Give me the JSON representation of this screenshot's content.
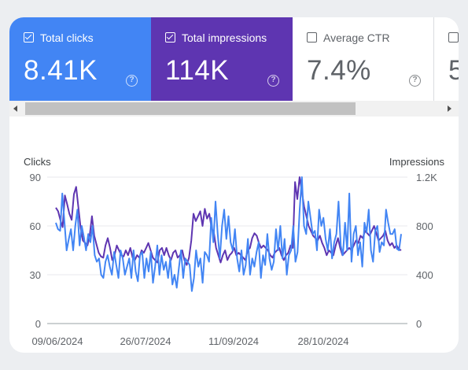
{
  "metrics": [
    {
      "label": "Total clicks",
      "value": "8.41K",
      "checked": true,
      "help": "?"
    },
    {
      "label": "Total impressions",
      "value": "114K",
      "checked": true,
      "help": "?"
    },
    {
      "label": "Average CTR",
      "value": "7.4%",
      "checked": false,
      "help": "?"
    },
    {
      "label": "",
      "value": "5",
      "checked": false
    }
  ],
  "colors": {
    "clicks": "#4285f4",
    "impressions": "#5e35b1"
  },
  "chart_data": {
    "type": "line",
    "left_axis_title": "Clicks",
    "right_axis_title": "Impressions",
    "left_ticks": [
      "0",
      "30",
      "60",
      "90"
    ],
    "right_ticks": [
      "0",
      "400",
      "800",
      "1.2K"
    ],
    "left_ylim": [
      0,
      90
    ],
    "right_ylim": [
      0,
      1200
    ],
    "x_ticks": [
      "09/06/2024",
      "26/07/2024",
      "11/09/2024",
      "28/10/2024"
    ],
    "grid": true,
    "series": [
      {
        "name": "Clicks",
        "axis": "left",
        "values": [
          62,
          58,
          57,
          80,
          62,
          45,
          52,
          58,
          45,
          60,
          70,
          48,
          60,
          53,
          45,
          55,
          50,
          60,
          42,
          38,
          40,
          30,
          28,
          38,
          42,
          35,
          30,
          44,
          36,
          28,
          45,
          40,
          30,
          35,
          40,
          28,
          45,
          32,
          26,
          42,
          44,
          28,
          40,
          32,
          44,
          25,
          35,
          48,
          30,
          42,
          33,
          38,
          28,
          40,
          24,
          30,
          22,
          34,
          45,
          28,
          40,
          38,
          36,
          20,
          28,
          45,
          35,
          40,
          25,
          44,
          42,
          38,
          65,
          50,
          75,
          55,
          40,
          60,
          70,
          52,
          66,
          50,
          45,
          58,
          40,
          32,
          45,
          30,
          36,
          52,
          30,
          40,
          35,
          44,
          50,
          28,
          42,
          36,
          55,
          40,
          33,
          38,
          58,
          45,
          60,
          40,
          52,
          30,
          42,
          45,
          60,
          38,
          44,
          70,
          90,
          60,
          55,
          75,
          65,
          55,
          57,
          45,
          70,
          60,
          65,
          52,
          45,
          58,
          40,
          50,
          55,
          75,
          48,
          42,
          62,
          45,
          80,
          38,
          55,
          60,
          42,
          50,
          35,
          62,
          56,
          70,
          45,
          38,
          57,
          60,
          44,
          50,
          48,
          70,
          62,
          55,
          55,
          58,
          46,
          45,
          55
        ]
      },
      {
        "name": "Impressions",
        "axis": "right",
        "values": [
          950,
          920,
          850,
          790,
          1050,
          980,
          900,
          850,
          1060,
          1120,
          950,
          780,
          680,
          660,
          640,
          720,
          880,
          720,
          650,
          580,
          550,
          540,
          640,
          700,
          620,
          520,
          560,
          640,
          600,
          560,
          550,
          600,
          560,
          620,
          540,
          520,
          560,
          540,
          600,
          580,
          620,
          660,
          600,
          540,
          520,
          500,
          600,
          620,
          560,
          620,
          560,
          520,
          580,
          600,
          540,
          560,
          600,
          520,
          480,
          540,
          680,
          900,
          840,
          880,
          920,
          800,
          940,
          860,
          900,
          780,
          750,
          620,
          560,
          500,
          560,
          600,
          520,
          560,
          580,
          620,
          560,
          580,
          560,
          540,
          520,
          600,
          620,
          700,
          740,
          720,
          660,
          620,
          640,
          620,
          600,
          560,
          540,
          580,
          600,
          620,
          560,
          520,
          560,
          580,
          640,
          620,
          1160,
          1020,
          1200,
          1080,
          960,
          880,
          800,
          760,
          720,
          700,
          680,
          720,
          660,
          620,
          560,
          600,
          580,
          560,
          640,
          700,
          620,
          560,
          580,
          600,
          620,
          600,
          640,
          680,
          660,
          720,
          700,
          760,
          740,
          720,
          760,
          800,
          740,
          680,
          700,
          720,
          760,
          680,
          640,
          660,
          620,
          640,
          610,
          600
        ]
      }
    ]
  }
}
